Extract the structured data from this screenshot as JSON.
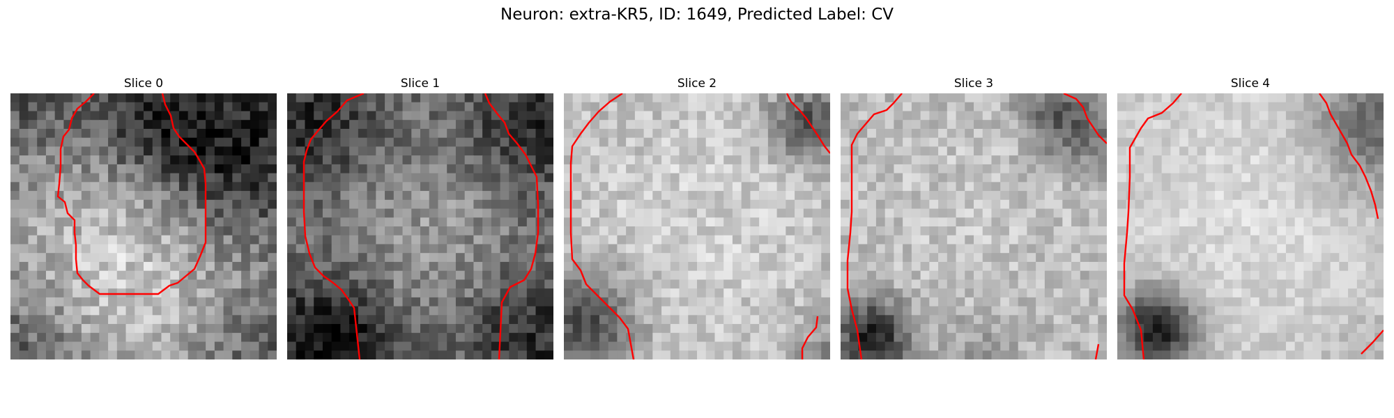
{
  "figure": {
    "title": "Neuron: extra-KR5, ID: 1649, Predicted Label: CV",
    "panels": [
      {
        "title": "Slice 0",
        "brightness": "mixed",
        "dark_region": "top-right"
      },
      {
        "title": "Slice 1",
        "brightness": "dark",
        "dark_region": "corners"
      },
      {
        "title": "Slice 2",
        "brightness": "light",
        "dark_region": "bottom-left"
      },
      {
        "title": "Slice 3",
        "brightness": "light",
        "dark_region": "bottom-left"
      },
      {
        "title": "Slice 4",
        "brightness": "very-light",
        "dark_region": "bottom-left"
      }
    ],
    "contour_color": "#ff0000",
    "colormap": "gray"
  }
}
